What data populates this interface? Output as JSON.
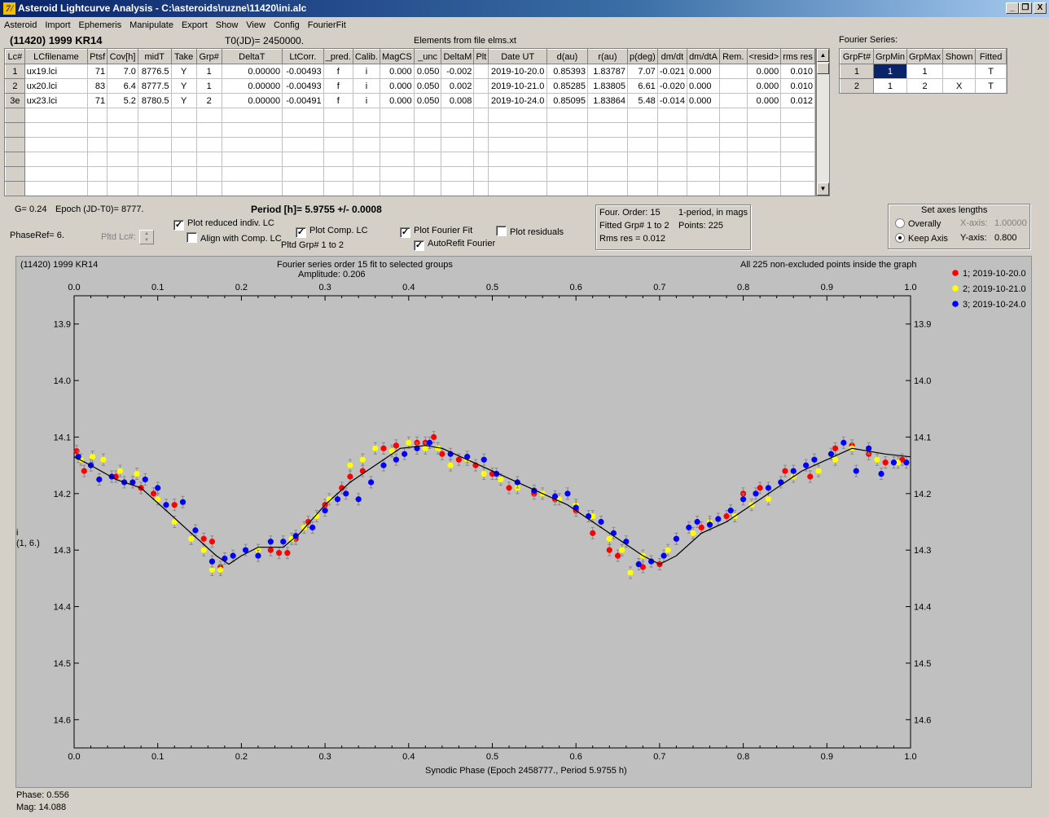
{
  "window": {
    "title": "Asteroid Lightcurve Analysis - C:\\asteroids\\ruzne\\11420\\ini.alc",
    "icon_glyph": "7/",
    "minimize_glyph": "_",
    "restore_glyph": "❐",
    "close_glyph": "X"
  },
  "menu": [
    "Asteroid",
    "Import",
    "Ephemeris",
    "Manipulate",
    "Export",
    "Show",
    "View",
    "Config",
    "FourierFit"
  ],
  "header": {
    "asteroid": "(11420) 1999 KR14",
    "t0": "T0(JD)= 2450000.",
    "elements": "Elements from file elms.xt",
    "fourier_series_label": "Fourier Series:"
  },
  "lc_table": {
    "columns": [
      "Lc#",
      "LCfilename",
      "Ptsf",
      "Cov[h]",
      "midT",
      "Take",
      "Grp#",
      "DeltaT",
      "LtCorr.",
      "_pred.",
      "Calib.",
      "MagCS",
      "_unc",
      "DeltaM",
      "Plt",
      "Date UT",
      "d(au)",
      "r(au)",
      "p(deg)",
      "dm/dt",
      "dm/dtA",
      "Rem.",
      "<resid>",
      "rms res"
    ],
    "rows": [
      [
        "1",
        "ux19.lci",
        "71",
        "7.0",
        "8776.5",
        "Y",
        "1",
        "0.00000",
        "-0.00493",
        "f",
        "i",
        "0.000",
        "0.050",
        "-0.002",
        "",
        "2019-10-20.0",
        "0.85393",
        "1.83787",
        "7.07",
        "-0.021",
        "0.000",
        "",
        "0.000",
        "0.010"
      ],
      [
        "2",
        "ux20.lci",
        "83",
        "6.4",
        "8777.5",
        "Y",
        "1",
        "0.00000",
        "-0.00493",
        "f",
        "i",
        "0.000",
        "0.050",
        "0.002",
        "",
        "2019-10-21.0",
        "0.85285",
        "1.83805",
        "6.61",
        "-0.020",
        "0.000",
        "",
        "0.000",
        "0.010"
      ],
      [
        "3e",
        "ux23.lci",
        "71",
        "5.2",
        "8780.5",
        "Y",
        "2",
        "0.00000",
        "-0.00491",
        "f",
        "i",
        "0.000",
        "0.050",
        "0.008",
        "",
        "2019-10-24.0",
        "0.85095",
        "1.83864",
        "5.48",
        "-0.014",
        "0.000",
        "",
        "0.000",
        "0.012"
      ]
    ],
    "empty_rows": 6
  },
  "fourier_table": {
    "columns": [
      "GrpFt#",
      "GrpMin",
      "GrpMax",
      "Shown",
      "Fitted"
    ],
    "rows": [
      [
        "1",
        "1",
        "1",
        "",
        "T"
      ],
      [
        "2",
        "1",
        "2",
        "X",
        "T"
      ]
    ]
  },
  "controls": {
    "g_label": "G= 0.24",
    "epoch_label": "Epoch (JD-T0)= 8777.",
    "period_label": "Period [h]= 5.9755 +/- 0.0008",
    "phase_ref": "PhaseRef= 6.",
    "pltd_lc": "Pltd Lc#:",
    "plot_reduced": "Plot reduced indiv. LC",
    "align_comp": "Align with Comp. LC",
    "plot_comp": "Plot Comp. LC",
    "pltd_grp": "Pltd Grp#  1   to   2",
    "plot_fourier": "Plot Fourier Fit",
    "autorefit": "AutoRefit Fourier",
    "plot_residuals": "Plot residuals",
    "check_glyph": "✓"
  },
  "fit_info": {
    "order": "Four. Order: 15",
    "period_mode": "1-period, in mags",
    "fitted": "Fitted Grp# 1 to 2",
    "points": "Points: 225",
    "rms": "Rms res     = 0.012"
  },
  "axes_box": {
    "title": "Set axes lengths",
    "overally": "Overally",
    "keep_axis": "Keep Axis",
    "x_label": "X-axis:",
    "x_value": "1.00000",
    "y_label": "Y-axis:",
    "y_value": "0.800"
  },
  "chart_data": {
    "type": "scatter",
    "title_left": "(11420) 1999 KR14",
    "title": "Fourier series order 15 fit to selected groups",
    "subtitle": "Amplitude: 0.206",
    "note": "All 225 non-excluded points inside the graph",
    "xlabel": "Synodic Phase (Epoch 2458777., Period 5.9755 h)",
    "ylabel": "i",
    "ylabel2": "(1, 6.)",
    "xlim": [
      0,
      1
    ],
    "ylim": [
      14.65,
      13.85
    ],
    "xticks": [
      "0.0",
      "0.1",
      "0.2",
      "0.3",
      "0.4",
      "0.5",
      "0.6",
      "0.7",
      "0.8",
      "0.9",
      "1.0"
    ],
    "yticks": [
      "13.9",
      "14.0",
      "14.1",
      "14.2",
      "14.3",
      "14.4",
      "14.5",
      "14.6"
    ],
    "legend": [
      {
        "name": "1; 2019-10-20.0",
        "color": "#ff0000"
      },
      {
        "name": "2; 2019-10-21.0",
        "color": "#ffff00"
      },
      {
        "name": "3; 2019-10-24.0",
        "color": "#0000ff"
      }
    ],
    "fit": {
      "x": [
        0.0,
        0.02,
        0.05,
        0.08,
        0.11,
        0.14,
        0.17,
        0.185,
        0.2,
        0.22,
        0.25,
        0.27,
        0.3,
        0.33,
        0.36,
        0.39,
        0.42,
        0.44,
        0.47,
        0.5,
        0.53,
        0.56,
        0.59,
        0.62,
        0.65,
        0.68,
        0.7,
        0.72,
        0.75,
        0.78,
        0.81,
        0.84,
        0.87,
        0.9,
        0.93,
        0.95,
        0.97,
        1.0
      ],
      "y": [
        14.135,
        14.15,
        14.175,
        14.19,
        14.23,
        14.27,
        14.31,
        14.325,
        14.31,
        14.295,
        14.295,
        14.27,
        14.22,
        14.18,
        14.15,
        14.12,
        14.115,
        14.12,
        14.14,
        14.16,
        14.18,
        14.2,
        14.22,
        14.25,
        14.28,
        14.31,
        14.325,
        14.31,
        14.27,
        14.25,
        14.22,
        14.19,
        14.16,
        14.14,
        14.12,
        14.125,
        14.13,
        14.135
      ]
    },
    "series": [
      {
        "name": "1; 2019-10-20.0",
        "color": "#ff0000",
        "x": [
          0.003,
          0.012,
          0.05,
          0.08,
          0.095,
          0.12,
          0.155,
          0.165,
          0.175,
          0.235,
          0.245,
          0.255,
          0.265,
          0.28,
          0.3,
          0.32,
          0.33,
          0.345,
          0.37,
          0.385,
          0.41,
          0.42,
          0.43,
          0.44,
          0.46,
          0.48,
          0.5,
          0.52,
          0.55,
          0.575,
          0.6,
          0.62,
          0.64,
          0.65,
          0.68,
          0.7,
          0.72,
          0.75,
          0.78,
          0.8,
          0.82,
          0.85,
          0.88,
          0.91,
          0.93,
          0.95,
          0.97,
          0.99
        ],
        "y": [
          14.125,
          14.16,
          14.17,
          14.19,
          14.2,
          14.22,
          14.28,
          14.285,
          14.33,
          14.3,
          14.305,
          14.305,
          14.28,
          14.25,
          14.22,
          14.19,
          14.17,
          14.16,
          14.12,
          14.115,
          14.11,
          14.11,
          14.1,
          14.13,
          14.14,
          14.15,
          14.165,
          14.19,
          14.2,
          14.21,
          14.23,
          14.27,
          14.3,
          14.31,
          14.33,
          14.325,
          14.28,
          14.26,
          14.24,
          14.2,
          14.19,
          14.16,
          14.17,
          14.12,
          14.115,
          14.13,
          14.145,
          14.14
        ]
      },
      {
        "name": "2; 2019-10-21.0",
        "color": "#ffff00",
        "x": [
          0.008,
          0.022,
          0.035,
          0.055,
          0.075,
          0.1,
          0.12,
          0.14,
          0.155,
          0.165,
          0.175,
          0.22,
          0.26,
          0.275,
          0.29,
          0.305,
          0.33,
          0.345,
          0.36,
          0.38,
          0.4,
          0.42,
          0.435,
          0.45,
          0.47,
          0.49,
          0.51,
          0.53,
          0.56,
          0.58,
          0.6,
          0.62,
          0.64,
          0.655,
          0.665,
          0.68,
          0.71,
          0.74,
          0.76,
          0.79,
          0.81,
          0.83,
          0.86,
          0.89,
          0.91,
          0.93,
          0.96,
          0.985
        ],
        "y": [
          14.14,
          14.135,
          14.14,
          14.16,
          14.165,
          14.21,
          14.25,
          14.28,
          14.3,
          14.335,
          14.335,
          14.3,
          14.28,
          14.26,
          14.24,
          14.21,
          14.15,
          14.14,
          14.12,
          14.125,
          14.11,
          14.12,
          14.12,
          14.15,
          14.14,
          14.165,
          14.175,
          14.19,
          14.2,
          14.21,
          14.22,
          14.24,
          14.28,
          14.3,
          14.34,
          14.31,
          14.3,
          14.27,
          14.25,
          14.24,
          14.22,
          14.21,
          14.17,
          14.16,
          14.14,
          14.12,
          14.14,
          14.145
        ]
      },
      {
        "name": "3; 2019-10-24.0",
        "color": "#0000ff",
        "x": [
          0.005,
          0.02,
          0.03,
          0.045,
          0.06,
          0.07,
          0.085,
          0.1,
          0.11,
          0.13,
          0.145,
          0.165,
          0.18,
          0.19,
          0.205,
          0.22,
          0.235,
          0.25,
          0.265,
          0.285,
          0.3,
          0.315,
          0.325,
          0.34,
          0.355,
          0.37,
          0.385,
          0.395,
          0.41,
          0.425,
          0.45,
          0.47,
          0.49,
          0.505,
          0.53,
          0.55,
          0.575,
          0.59,
          0.6,
          0.615,
          0.63,
          0.645,
          0.66,
          0.675,
          0.69,
          0.705,
          0.72,
          0.735,
          0.745,
          0.76,
          0.77,
          0.785,
          0.8,
          0.815,
          0.83,
          0.845,
          0.86,
          0.875,
          0.885,
          0.905,
          0.92,
          0.935,
          0.95,
          0.965,
          0.98,
          0.995
        ],
        "y": [
          14.135,
          14.15,
          14.175,
          14.17,
          14.18,
          14.18,
          14.175,
          14.19,
          14.22,
          14.215,
          14.265,
          14.32,
          14.315,
          14.31,
          14.3,
          14.31,
          14.285,
          14.285,
          14.275,
          14.26,
          14.23,
          14.21,
          14.2,
          14.21,
          14.18,
          14.15,
          14.14,
          14.13,
          14.12,
          14.11,
          14.13,
          14.135,
          14.14,
          14.165,
          14.18,
          14.195,
          14.205,
          14.2,
          14.225,
          14.24,
          14.25,
          14.27,
          14.285,
          14.325,
          14.32,
          14.31,
          14.28,
          14.26,
          14.25,
          14.255,
          14.245,
          14.23,
          14.21,
          14.2,
          14.19,
          14.18,
          14.16,
          14.15,
          14.14,
          14.13,
          14.11,
          14.16,
          14.12,
          14.165,
          14.145,
          14.145
        ]
      }
    ]
  },
  "status": {
    "phase": "Phase:  0.556",
    "mag": "Mag:    14.088"
  }
}
